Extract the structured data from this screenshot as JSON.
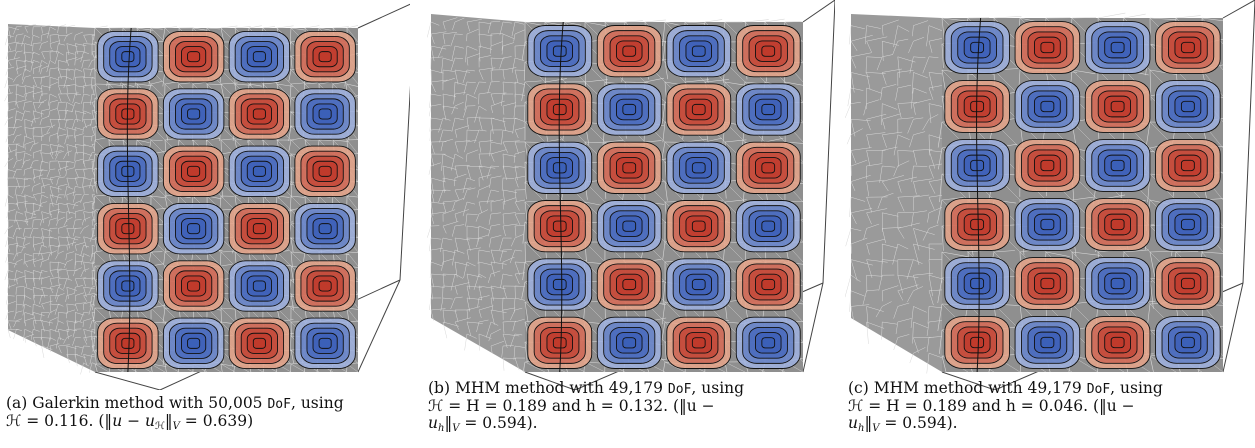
{
  "figure": {
    "panels": [
      {
        "id": "a",
        "mesh_density": "coarse",
        "grid_rows": 6,
        "grid_cols": 4,
        "caption": {
          "prefix": "(a) Galerkin method with 50,005 ",
          "dof": "DoF",
          "mid": ", using",
          "line2_a": "ℋ = 0.116. (‖",
          "u": "u",
          "minus": " − ",
          "uH": "u",
          "sub_H": "ℋ",
          "norm_close": "‖",
          "sub_V": "V",
          "value": " = 0.639)"
        }
      },
      {
        "id": "b",
        "mesh_density": "medium",
        "grid_rows": 6,
        "grid_cols": 4,
        "caption": {
          "line1_prefix": "(b) MHM method with 49,179 ",
          "dof": "DoF",
          "line1_suffix": ", using",
          "line2": "ℋ = H = 0.189 and h = 0.132. (‖u −",
          "line3_u": "u",
          "line3_sub_h": "h",
          "line3_norm": "‖",
          "line3_sub_V": "V",
          "line3_value": " = 0.594)."
        }
      },
      {
        "id": "c",
        "mesh_density": "fine",
        "grid_rows": 6,
        "grid_cols": 4,
        "caption": {
          "line1_prefix": "(c) MHM method with 49,179 ",
          "dof": "DoF",
          "line1_suffix": ", using",
          "line2": "ℋ = H = 0.189 and h = 0.046. (‖u −",
          "line3_u": "u",
          "line3_sub_h": "h",
          "line3_norm": "‖",
          "line3_sub_V": "V",
          "line3_value": " = 0.594)."
        }
      }
    ],
    "colors": {
      "red": "#c0392b",
      "red_light": "#e8a58a",
      "blue": "#3b5fb8",
      "blue_light": "#9fb2e0",
      "gray_face": "#8f8f8f",
      "gray_side": "#9a9a9a",
      "mesh_line": "#d8d8d8",
      "contour": "#111111",
      "box_line": "#444444"
    }
  }
}
